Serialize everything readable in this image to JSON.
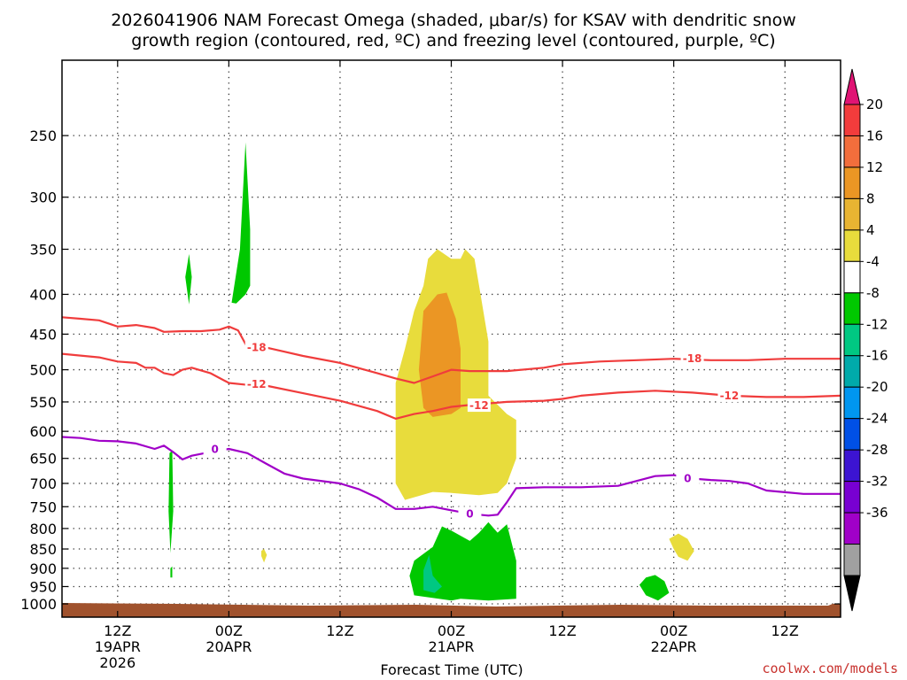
{
  "chart_data": {
    "type": "heatmap",
    "title_line1": "2026041906 NAM Forecast Omega (shaded, μbar/s) for KSAV with dendritic snow",
    "title_line2": "growth region (contoured, red, ºC) and freezing level (contoured, purple, ºC)",
    "xlabel": "Forecast Time (UTC)",
    "credit": "coolwx.com/models",
    "x_range_hours": [
      -18,
      66
    ],
    "y_scale": "log-pressure",
    "y_range_mb": [
      200,
      1040
    ],
    "y_ticks": [
      "250",
      "300",
      "350",
      "400",
      "450",
      "500",
      "550",
      "600",
      "650",
      "700",
      "750",
      "800",
      "850",
      "900",
      "950",
      "1000"
    ],
    "x_ticks": [
      {
        "hour": -12,
        "line1": "12Z",
        "line2": "19APR",
        "line3": "2026"
      },
      {
        "hour": 0,
        "line1": "00Z",
        "line2": "20APR",
        "line3": ""
      },
      {
        "hour": 12,
        "line1": "12Z",
        "line2": "",
        "line3": ""
      },
      {
        "hour": 24,
        "line1": "00Z",
        "line2": "21APR",
        "line3": ""
      },
      {
        "hour": 36,
        "line1": "12Z",
        "line2": "",
        "line3": ""
      },
      {
        "hour": 48,
        "line1": "00Z",
        "line2": "22APR",
        "line3": ""
      },
      {
        "hour": 60,
        "line1": "12Z",
        "line2": "",
        "line3": ""
      }
    ],
    "grid": true,
    "colorbar": {
      "labels": [
        "20",
        "16",
        "12",
        "8",
        "4",
        "-4",
        "-8",
        "-12",
        "-16",
        "-20",
        "-24",
        "-28",
        "-32",
        "-36"
      ],
      "bands": [
        "#e01474",
        "#f23c3c",
        "#f26e3c",
        "#eb9624",
        "#e8b432",
        "#e8dc3c",
        "#ffffff",
        "#00c800",
        "#00c882",
        "#00aaaa",
        "#0096f0",
        "#0050e6",
        "#3c14d2",
        "#7800d2",
        "#a000c8",
        "#a0a0a0",
        "#000000"
      ]
    },
    "contours": [
      {
        "name": "-18",
        "color": "#f03c3c",
        "points": [
          [
            -18,
            428
          ],
          [
            -16,
            430
          ],
          [
            -14,
            432
          ],
          [
            -12,
            440
          ],
          [
            -10,
            438
          ],
          [
            -8,
            442
          ],
          [
            -7,
            447
          ],
          [
            -5,
            446
          ],
          [
            -3,
            446
          ],
          [
            -1,
            444
          ],
          [
            0,
            440
          ],
          [
            1,
            445
          ],
          [
            2,
            468
          ],
          [
            4,
            468
          ],
          [
            6,
            474
          ],
          [
            8,
            480
          ],
          [
            12,
            490
          ],
          [
            16,
            505
          ],
          [
            18,
            513
          ],
          [
            20,
            520
          ],
          [
            22,
            510
          ],
          [
            24,
            500
          ],
          [
            26,
            502
          ],
          [
            30,
            502
          ],
          [
            34,
            497
          ],
          [
            36,
            492
          ],
          [
            40,
            488
          ],
          [
            44,
            486
          ],
          [
            48,
            484
          ],
          [
            52,
            486
          ],
          [
            56,
            486
          ],
          [
            60,
            484
          ],
          [
            66,
            484
          ]
        ],
        "labels": [
          [
            3,
            468
          ],
          [
            50,
            484
          ]
        ]
      },
      {
        "name": "-12",
        "color": "#f03c3c",
        "points": [
          [
            -18,
            477
          ],
          [
            -14,
            482
          ],
          [
            -12,
            488
          ],
          [
            -10,
            490
          ],
          [
            -9,
            497
          ],
          [
            -8,
            497
          ],
          [
            -7,
            505
          ],
          [
            -6,
            508
          ],
          [
            -5,
            500
          ],
          [
            -4,
            497
          ],
          [
            -2,
            505
          ],
          [
            0,
            520
          ],
          [
            2,
            523
          ],
          [
            4,
            524
          ],
          [
            8,
            536
          ],
          [
            12,
            548
          ],
          [
            16,
            565
          ],
          [
            18,
            578
          ],
          [
            20,
            570
          ],
          [
            22,
            565
          ],
          [
            24,
            558
          ],
          [
            26,
            555
          ],
          [
            30,
            550
          ],
          [
            34,
            548
          ],
          [
            36,
            545
          ],
          [
            38,
            540
          ],
          [
            42,
            535
          ],
          [
            46,
            532
          ],
          [
            50,
            535
          ],
          [
            54,
            540
          ],
          [
            58,
            542
          ],
          [
            62,
            542
          ],
          [
            66,
            540
          ]
        ],
        "labels": [
          [
            3,
            522
          ],
          [
            27,
            556
          ],
          [
            54,
            540
          ]
        ]
      },
      {
        "name": "0",
        "color": "#a000c8",
        "points": [
          [
            -18,
            610
          ],
          [
            -16,
            612
          ],
          [
            -14,
            617
          ],
          [
            -12,
            618
          ],
          [
            -10,
            622
          ],
          [
            -8,
            632
          ],
          [
            -7,
            626
          ],
          [
            -6,
            638
          ],
          [
            -5,
            652
          ],
          [
            -4,
            645
          ],
          [
            -2,
            638
          ],
          [
            0,
            632
          ],
          [
            2,
            640
          ],
          [
            4,
            660
          ],
          [
            6,
            680
          ],
          [
            8,
            690
          ],
          [
            12,
            700
          ],
          [
            14,
            712
          ],
          [
            16,
            730
          ],
          [
            18,
            755
          ],
          [
            20,
            755
          ],
          [
            22,
            750
          ],
          [
            24,
            758
          ],
          [
            26,
            766
          ],
          [
            28,
            770
          ],
          [
            29,
            768
          ],
          [
            30,
            740
          ],
          [
            31,
            710
          ],
          [
            34,
            708
          ],
          [
            38,
            708
          ],
          [
            42,
            705
          ],
          [
            44,
            695
          ],
          [
            46,
            685
          ],
          [
            48,
            683
          ],
          [
            50,
            690
          ],
          [
            52,
            693
          ],
          [
            54,
            695
          ],
          [
            56,
            700
          ],
          [
            58,
            715
          ],
          [
            62,
            722
          ],
          [
            66,
            722
          ]
        ],
        "labels": [
          [
            -1.5,
            633
          ],
          [
            26,
            766
          ],
          [
            49.5,
            690
          ]
        ]
      }
    ],
    "shaded": [
      {
        "value": "-4 to -8",
        "color": "#00c800",
        "points": [
          [
            0.3,
            410
          ],
          [
            1.2,
            350
          ],
          [
            1.8,
            255
          ],
          [
            2.3,
            330
          ],
          [
            2.3,
            390
          ],
          [
            1.8,
            400
          ],
          [
            0.8,
            411
          ]
        ]
      },
      {
        "value": "-4 to -8",
        "color": "#00c800",
        "points": [
          [
            -4.7,
            380
          ],
          [
            -4.3,
            355
          ],
          [
            -4.0,
            380
          ],
          [
            -4.3,
            412
          ]
        ]
      },
      {
        "value": "-4 to -8",
        "color": "#00c800",
        "points": [
          [
            -6.4,
            640
          ],
          [
            -6.1,
            635
          ],
          [
            -6.0,
            760
          ],
          [
            -6.3,
            860
          ],
          [
            -6.5,
            760
          ]
        ]
      },
      {
        "value": "-4 to -8",
        "color": "#00c800",
        "points": [
          [
            -6.3,
            900
          ],
          [
            -6.1,
            895
          ],
          [
            -6.1,
            925
          ],
          [
            -6.3,
            925
          ]
        ]
      },
      {
        "value": "-4 to -8",
        "color": "#00c800",
        "points": [
          [
            20,
            880
          ],
          [
            22,
            845
          ],
          [
            23,
            795
          ],
          [
            24,
            805
          ],
          [
            26,
            830
          ],
          [
            27,
            810
          ],
          [
            28,
            785
          ],
          [
            29,
            810
          ],
          [
            30,
            790
          ],
          [
            31,
            880
          ],
          [
            31,
            985
          ],
          [
            28,
            990
          ],
          [
            25,
            985
          ],
          [
            24,
            990
          ],
          [
            20,
            975
          ],
          [
            19.5,
            920
          ]
        ]
      },
      {
        "value": "-4 to -8",
        "color": "#00c800",
        "points": [
          [
            44.3,
            945
          ],
          [
            45,
            925
          ],
          [
            46,
            918
          ],
          [
            47,
            935
          ],
          [
            47.5,
            968
          ],
          [
            46.3,
            990
          ],
          [
            45,
            975
          ]
        ]
      },
      {
        "value": "-8 to -12",
        "color": "#00c882",
        "points": [
          [
            21,
            905
          ],
          [
            21.6,
            865
          ],
          [
            22,
            920
          ],
          [
            23,
            950
          ],
          [
            22.2,
            968
          ],
          [
            21,
            960
          ]
        ]
      },
      {
        "value": "4 to 8",
        "color": "#e8dc3c",
        "points": [
          [
            18,
            520
          ],
          [
            19,
            470
          ],
          [
            20,
            420
          ],
          [
            21,
            390
          ],
          [
            21.5,
            360
          ],
          [
            22.5,
            350
          ],
          [
            24,
            360
          ],
          [
            25,
            360
          ],
          [
            25.5,
            350
          ],
          [
            26.5,
            360
          ],
          [
            27,
            390
          ],
          [
            28,
            460
          ],
          [
            28,
            540
          ],
          [
            30,
            570
          ],
          [
            31,
            580
          ],
          [
            31,
            650
          ],
          [
            30,
            700
          ],
          [
            29,
            720
          ],
          [
            27,
            725
          ],
          [
            24,
            720
          ],
          [
            22,
            718
          ],
          [
            19,
            735
          ],
          [
            18,
            700
          ],
          [
            18,
            600
          ]
        ]
      },
      {
        "value": "8 to 12",
        "color": "#eb9624",
        "points": [
          [
            21,
            420
          ],
          [
            22.5,
            400
          ],
          [
            23.5,
            398
          ],
          [
            24.5,
            430
          ],
          [
            25,
            470
          ],
          [
            25,
            560
          ],
          [
            24,
            570
          ],
          [
            22,
            575
          ],
          [
            21,
            560
          ],
          [
            20.5,
            500
          ]
        ]
      },
      {
        "value": "4 to 8",
        "color": "#e8dc3c",
        "points": [
          [
            3.5,
            855
          ],
          [
            3.8,
            850
          ],
          [
            4.1,
            865
          ],
          [
            3.8,
            885
          ],
          [
            3.5,
            868
          ]
        ]
      },
      {
        "value": "4 to 8",
        "color": "#e8dc3c",
        "points": [
          [
            47.5,
            825
          ],
          [
            48.5,
            812
          ],
          [
            49.5,
            825
          ],
          [
            50.2,
            855
          ],
          [
            49.5,
            880
          ],
          [
            48.5,
            870
          ],
          [
            48,
            850
          ]
        ]
      }
    ]
  }
}
